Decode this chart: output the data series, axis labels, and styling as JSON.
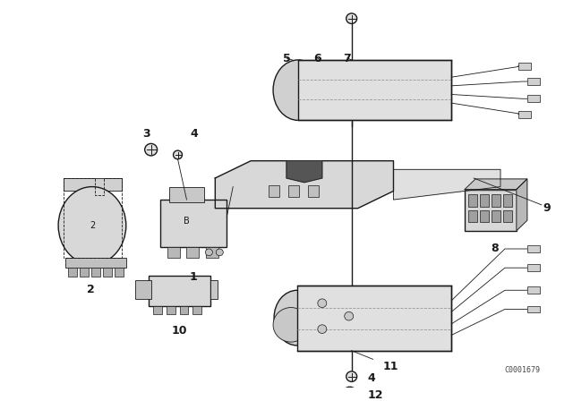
{
  "bg_color": "#ffffff",
  "fig_width": 6.4,
  "fig_height": 4.48,
  "dpi": 100,
  "watermark": "C0001679",
  "lc": "#1a1a1a",
  "light": "#e8e8e8",
  "mid": "#cccccc",
  "dark": "#aaaaaa"
}
